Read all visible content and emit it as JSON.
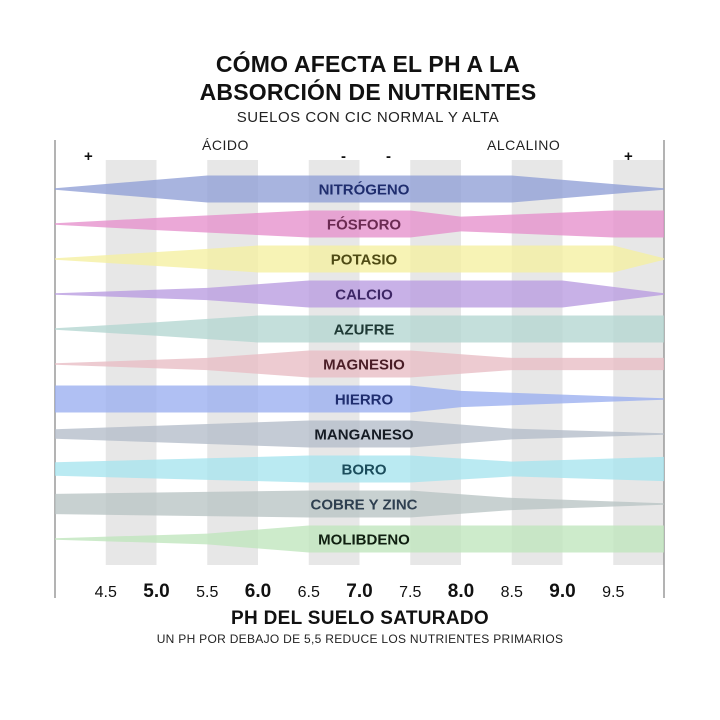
{
  "header": {
    "title_line1": "CÓMO AFECTA EL PH A LA",
    "title_line2": "ABSORCIÓN DE NUTRIENTES",
    "subtitle": "SUELOS CON CIC NORMAL Y ALTA"
  },
  "regions": {
    "acid": "ÁCIDO",
    "alkaline": "ALCALINO",
    "markers": [
      "+",
      "-",
      "-",
      "+"
    ]
  },
  "footer": {
    "xlabel": "PH DEL SUELO SATURADO",
    "note": "UN PH POR DEBAJO DE 5,5 REDUCE LOS NUTRIENTES PRIMARIOS"
  },
  "chart_data": {
    "type": "area",
    "xlim": [
      4.0,
      10.0
    ],
    "x_ticks": [
      {
        "label": "4.5",
        "value": 4.5,
        "bold": false
      },
      {
        "label": "5.0",
        "value": 5.0,
        "bold": true
      },
      {
        "label": "5.5",
        "value": 5.5,
        "bold": false
      },
      {
        "label": "6.0",
        "value": 6.0,
        "bold": true
      },
      {
        "label": "6.5",
        "value": 6.5,
        "bold": false
      },
      {
        "label": "7.0",
        "value": 7.0,
        "bold": true
      },
      {
        "label": "7.5",
        "value": 7.5,
        "bold": false
      },
      {
        "label": "8.0",
        "value": 8.0,
        "bold": true
      },
      {
        "label": "8.5",
        "value": 8.5,
        "bold": false
      },
      {
        "label": "9.0",
        "value": 9.0,
        "bold": true
      },
      {
        "label": "9.5",
        "value": 9.5,
        "bold": false
      }
    ],
    "series": [
      {
        "name": "NITRÓGENO",
        "color": "#8f9fd6",
        "label_color": "#1f2d6e",
        "x": [
          4.0,
          5.5,
          8.5,
          10.0
        ],
        "thickness": [
          0.05,
          1.0,
          1.0,
          0.05
        ]
      },
      {
        "name": "FÓSFORO",
        "color": "#e58fcc",
        "label_color": "#6b2a52",
        "x": [
          4.0,
          5.0,
          6.5,
          7.5,
          8.0,
          8.5,
          9.5,
          10.0
        ],
        "thickness": [
          0.05,
          0.45,
          1.0,
          1.0,
          0.55,
          0.7,
          1.0,
          1.0
        ]
      },
      {
        "name": "POTASIO",
        "color": "#f5f0a0",
        "label_color": "#4e4a14",
        "x": [
          4.0,
          5.5,
          6.0,
          9.5,
          10.0
        ],
        "thickness": [
          0.05,
          0.75,
          1.0,
          1.0,
          0.05
        ]
      },
      {
        "name": "CALCIO",
        "color": "#b99be0",
        "label_color": "#3e2766",
        "x": [
          4.0,
          5.5,
          6.5,
          7.5,
          9.0,
          10.0
        ],
        "thickness": [
          0.05,
          0.45,
          1.0,
          1.0,
          1.0,
          0.05
        ]
      },
      {
        "name": "AZUFRE",
        "color": "#b3d6d1",
        "label_color": "#1d3834",
        "x": [
          4.0,
          5.0,
          6.0,
          7.5,
          8.5,
          10.0
        ],
        "thickness": [
          0.05,
          0.5,
          1.0,
          1.0,
          1.0,
          1.0
        ]
      },
      {
        "name": "MAGNESIO",
        "color": "#e8bcc4",
        "label_color": "#4a1d26",
        "x": [
          4.0,
          5.5,
          6.5,
          7.5,
          8.5,
          10.0
        ],
        "thickness": [
          0.05,
          0.45,
          1.0,
          1.0,
          0.45,
          0.45
        ]
      },
      {
        "name": "HIERRO",
        "color": "#9aaef0",
        "label_color": "#1f2d6e",
        "x": [
          4.0,
          7.5,
          8.0,
          10.0
        ],
        "thickness": [
          1.0,
          1.0,
          0.6,
          0.05
        ]
      },
      {
        "name": "MANGANESO",
        "color": "#b4bdc9",
        "label_color": "#151b24",
        "x": [
          4.0,
          6.5,
          7.5,
          8.5,
          10.0
        ],
        "thickness": [
          0.35,
          1.0,
          1.0,
          0.4,
          0.05
        ]
      },
      {
        "name": "BORO",
        "color": "#a7e4ee",
        "label_color": "#1b4d5c",
        "x": [
          4.0,
          6.5,
          7.5,
          8.5,
          10.0
        ],
        "thickness": [
          0.5,
          1.0,
          1.0,
          0.55,
          0.9
        ]
      },
      {
        "name": "COBRE Y ZINC",
        "color": "#b8c4c4",
        "label_color": "#2e3f50",
        "x": [
          4.0,
          6.5,
          7.5,
          8.5,
          10.0
        ],
        "thickness": [
          0.75,
          1.0,
          1.0,
          0.45,
          0.05
        ]
      },
      {
        "name": "MOLIBDENO",
        "color": "#bfe6bc",
        "label_color": "#0f1f10",
        "x": [
          4.0,
          5.5,
          6.5,
          7.5,
          8.5,
          10.0
        ],
        "thickness": [
          0.05,
          0.4,
          1.0,
          1.0,
          1.0,
          1.0
        ]
      }
    ]
  }
}
